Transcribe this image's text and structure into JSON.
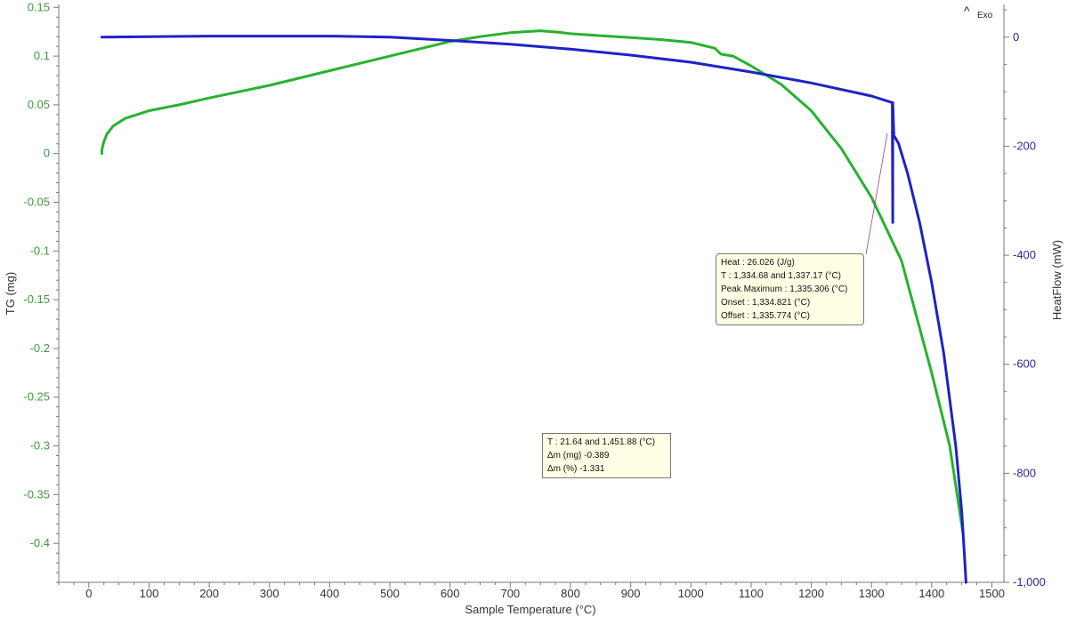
{
  "chart_data": {
    "type": "line",
    "xlabel": "Sample Temperature (°C)",
    "ylabel_left": "TG (mg)",
    "ylabel_right": "HeatFlow (mW)",
    "xlim": [
      -50,
      1520
    ],
    "ylim_left": [
      -0.44,
      0.153
    ],
    "ylim_right": [
      -1000,
      60
    ],
    "x_ticks": [
      0,
      100,
      200,
      300,
      400,
      500,
      600,
      700,
      800,
      900,
      1000,
      1100,
      1200,
      1300,
      1400,
      1500
    ],
    "x_tick_labels": [
      "0",
      "100",
      "200",
      "300",
      "400",
      "500",
      "600",
      "700",
      "800",
      "900",
      "1000",
      "1100",
      "1200",
      "1300",
      "1400",
      "1500"
    ],
    "y_left_ticks": [
      0.15,
      0.1,
      0.05,
      0,
      -0.05,
      -0.1,
      -0.15,
      -0.2,
      -0.25,
      -0.3,
      -0.35,
      -0.4
    ],
    "y_left_tick_labels": [
      "0.15",
      "0.1",
      "0.05",
      "0",
      "-0.05",
      "-0.1",
      "-0.15",
      "-0.2",
      "-0.25",
      "-0.3",
      "-0.35",
      "-0.4"
    ],
    "y_right_ticks": [
      0,
      -200,
      -400,
      -600,
      -800,
      -1000
    ],
    "y_right_tick_labels": [
      "0",
      "-200",
      "-400",
      "-600",
      "-800",
      "-1,000"
    ],
    "grid": false,
    "colors": {
      "tg": "#27b22e",
      "heatflow": "#1f22c6",
      "left_axis": "#3b9b3b",
      "right_axis": "#2b2b9b"
    },
    "series": [
      {
        "axis": "left",
        "x": [
          21.6,
          22,
          25,
          30,
          40,
          60,
          80,
          100,
          150,
          200,
          300,
          400,
          500,
          600,
          650,
          700,
          750,
          780,
          800,
          850,
          900,
          950,
          1000,
          1040,
          1050,
          1070,
          1100,
          1150,
          1200,
          1250,
          1300,
          1350,
          1400,
          1430,
          1451.88
        ],
        "y": [
          0,
          0.005,
          0.012,
          0.02,
          0.028,
          0.036,
          0.04,
          0.044,
          0.05,
          0.057,
          0.07,
          0.085,
          0.1,
          0.115,
          0.12,
          0.124,
          0.126,
          0.1245,
          0.123,
          0.121,
          0.119,
          0.117,
          0.114,
          0.108,
          0.102,
          0.1,
          0.09,
          0.071,
          0.044,
          0.005,
          -0.045,
          -0.11,
          -0.225,
          -0.3,
          -0.389
        ]
      },
      {
        "axis": "right",
        "x": [
          21.6,
          100,
          200,
          300,
          400,
          500,
          600,
          700,
          800,
          900,
          1000,
          1100,
          1200,
          1300,
          1334.68,
          1335.3,
          1335.3,
          1337.17,
          1345,
          1360,
          1380,
          1400,
          1420,
          1440,
          1450,
          1455,
          1457
        ],
        "y": [
          0,
          1,
          2,
          2,
          2,
          0,
          -6,
          -13,
          -22,
          -33,
          -46,
          -64,
          -84,
          -108,
          -120,
          -340,
          -120,
          -180,
          -195,
          -250,
          -340,
          -450,
          -580,
          -750,
          -870,
          -960,
          -1000
        ]
      }
    ],
    "annotations": [
      {
        "lines": [
          "Heat :  26.026 (J/g)",
          "T :  1,334.68 and 1,337.17 (°C)",
          "Peak Maximum :  1,335.306 (°C)",
          "Onset :  1,334.821 (°C)",
          "Offset :  1,335.774 (°C)"
        ]
      },
      {
        "lines": [
          "T : 21.64 and 1,451.88 (°C)",
          "Δm (mg) -0.389",
          "Δm (%) -1.331"
        ]
      }
    ],
    "exo_label": "Exo"
  }
}
